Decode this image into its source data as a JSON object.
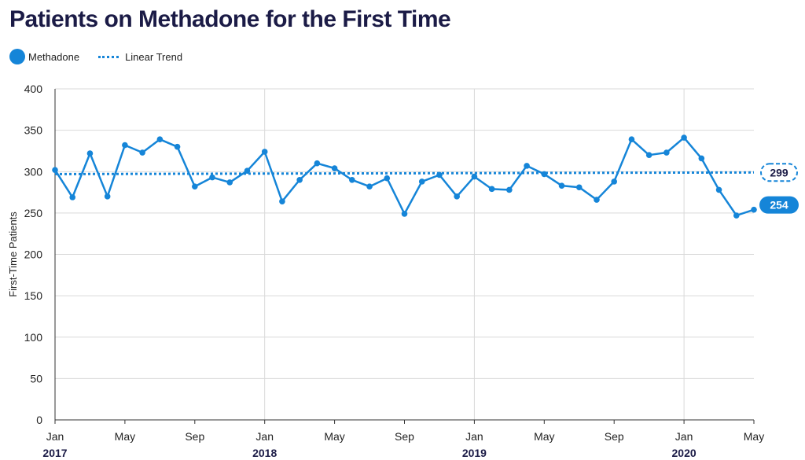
{
  "title": "Patients on Methadone for the First Time",
  "legend": {
    "series_label": "Methadone",
    "trend_label": "Linear Trend"
  },
  "colors": {
    "series": "#1585d8",
    "title": "#1b1b46",
    "grid": "#d9d9d9",
    "axis": "#333333"
  },
  "chart_data": {
    "type": "line",
    "title": "Patients on Methadone for the First Time",
    "ylabel": "First-Time Patients",
    "xlabel": "",
    "ylim": [
      0,
      400
    ],
    "yticks": [
      0,
      50,
      100,
      150,
      200,
      250,
      300,
      350,
      400
    ],
    "x_tick_labels": [
      {
        "month": "Jan",
        "year": "2017",
        "index": 0
      },
      {
        "month": "May",
        "year": "",
        "index": 4
      },
      {
        "month": "Sep",
        "year": "",
        "index": 8
      },
      {
        "month": "Jan",
        "year": "2018",
        "index": 12
      },
      {
        "month": "May",
        "year": "",
        "index": 16
      },
      {
        "month": "Sep",
        "year": "",
        "index": 20
      },
      {
        "month": "Jan",
        "year": "2019",
        "index": 24
      },
      {
        "month": "May",
        "year": "",
        "index": 28
      },
      {
        "month": "Sep",
        "year": "",
        "index": 32
      },
      {
        "month": "Jan",
        "year": "2020",
        "index": 36
      },
      {
        "month": "May",
        "year": "",
        "index": 40
      }
    ],
    "x": [
      "2017-01",
      "2017-02",
      "2017-03",
      "2017-04",
      "2017-05",
      "2017-06",
      "2017-07",
      "2017-08",
      "2017-09",
      "2017-10",
      "2017-11",
      "2017-12",
      "2018-01",
      "2018-02",
      "2018-03",
      "2018-04",
      "2018-05",
      "2018-06",
      "2018-07",
      "2018-08",
      "2018-09",
      "2018-10",
      "2018-11",
      "2018-12",
      "2019-01",
      "2019-02",
      "2019-03",
      "2019-04",
      "2019-05",
      "2019-06",
      "2019-07",
      "2019-08",
      "2019-09",
      "2019-10",
      "2019-11",
      "2019-12",
      "2020-01",
      "2020-02",
      "2020-03",
      "2020-04",
      "2020-05"
    ],
    "series": [
      {
        "name": "Methadone",
        "values": [
          302,
          269,
          322,
          270,
          332,
          323,
          339,
          330,
          282,
          293,
          287,
          301,
          324,
          264,
          290,
          310,
          304,
          290,
          282,
          292,
          249,
          288,
          296,
          270,
          294,
          279,
          278,
          307,
          297,
          283,
          281,
          266,
          288,
          339,
          320,
          323,
          341,
          316,
          278,
          247,
          254
        ]
      }
    ],
    "trend": {
      "name": "Linear Trend",
      "start": 297,
      "end": 299
    },
    "end_labels": {
      "trend": "299",
      "series": "254"
    },
    "grid": true,
    "vertical_grid_at_years": true,
    "legend_position": "top-left"
  }
}
